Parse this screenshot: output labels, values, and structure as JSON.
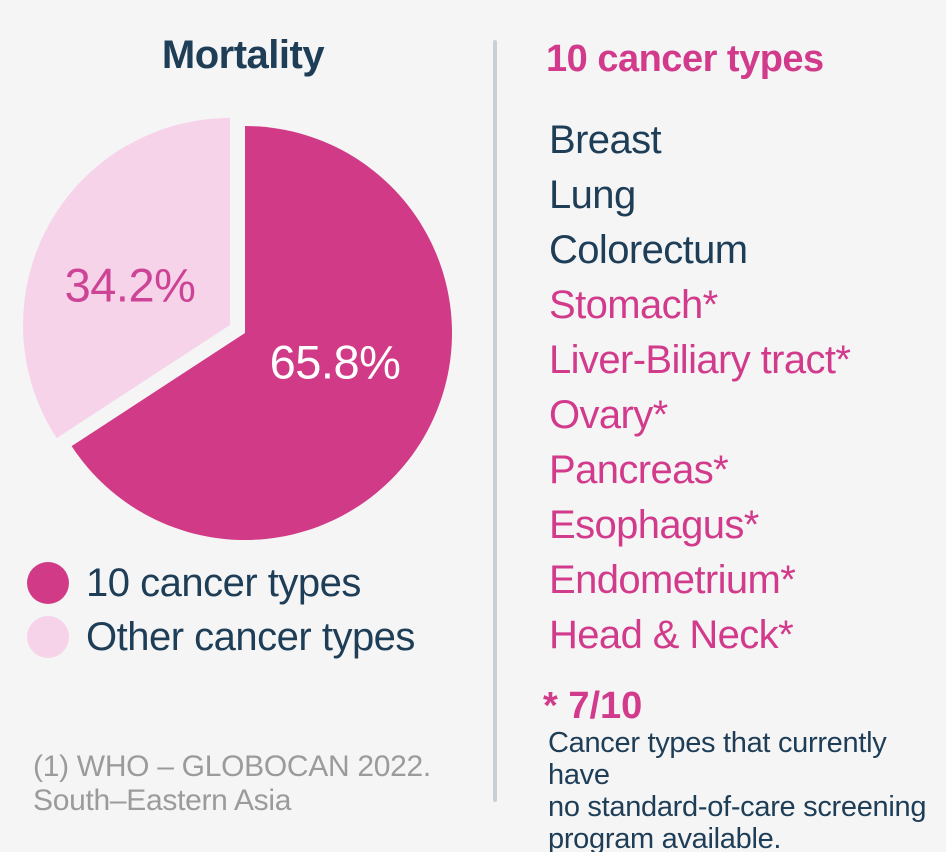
{
  "colors": {
    "background": "#f5f5f6",
    "navy_text": "#1e3d56",
    "pink_accent": "#d23b8b",
    "pie_major": "#d03a86",
    "pie_minor": "#f6d3e9",
    "pie_minor_label_text": "#cd4496",
    "pie_major_label_text": "#ffffff",
    "source_note_gray": "#9b9b9b",
    "divider_gray": "#c8cfd6"
  },
  "left_panel": {
    "title": "Mortality",
    "legend": [
      {
        "label": "10 cancer types",
        "color": "#d03a86"
      },
      {
        "label": "Other cancer types",
        "color": "#f6d3e9"
      }
    ],
    "footnote_lines": [
      "(1) WHO – GLOBOCAN 2022.",
      "South–Eastern Asia"
    ]
  },
  "right_panel": {
    "title": "10 cancer types",
    "items": [
      {
        "label": "Breast",
        "starred": false
      },
      {
        "label": "Lung",
        "starred": false
      },
      {
        "label": "Colorectum",
        "starred": false
      },
      {
        "label": "Stomach*",
        "starred": true
      },
      {
        "label": "Liver-Biliary tract*",
        "starred": true
      },
      {
        "label": "Ovary*",
        "starred": true
      },
      {
        "label": "Pancreas*",
        "starred": true
      },
      {
        "label": "Esophagus*",
        "starred": true
      },
      {
        "label": "Endometrium*",
        "starred": true
      },
      {
        "label": "Head & Neck*",
        "starred": true
      }
    ],
    "footnote_title": "* 7/10",
    "footnote_lines": [
      "Cancer types that currently have",
      "no standard-of-care screening",
      "program available."
    ]
  },
  "chart_data": {
    "type": "pie",
    "title": "Mortality",
    "start_angle_deg": 0,
    "direction": "clockwise",
    "legend_position": "bottom-left",
    "slices": [
      {
        "label": "10 cancer types",
        "value": 65.8,
        "display": "65.8%",
        "color": "#d03a86",
        "exploded": true
      },
      {
        "label": "Other cancer types",
        "value": 34.2,
        "display": "34.2%",
        "color": "#f6d3e9",
        "exploded": false
      }
    ],
    "source_note": "(1) WHO – GLOBOCAN 2022. South–Eastern Asia"
  }
}
